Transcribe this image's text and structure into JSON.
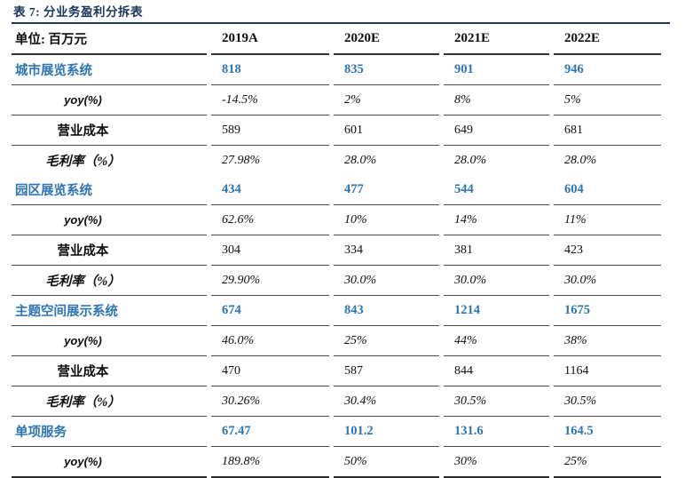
{
  "title": "表 7:  分业务盈利分拆表",
  "colors": {
    "accent_blue": "#2E75B6",
    "title_navy": "#17365D",
    "rule_dark": "#2f2f2f"
  },
  "table": {
    "unit_label": "单位: 百万元",
    "year_cols": [
      "2019A",
      "2020E",
      "2021E",
      "2022E"
    ],
    "rows": [
      {
        "type": "section",
        "label": "城市展览系统",
        "values": [
          "818",
          "835",
          "901",
          "946"
        ]
      },
      {
        "type": "yoy",
        "label": "yoy(%)",
        "values": [
          "-14.5%",
          "2%",
          "8%",
          "5%"
        ]
      },
      {
        "type": "cost",
        "label": "营业成本",
        "values": [
          "589",
          "601",
          "649",
          "681"
        ]
      },
      {
        "type": "margin",
        "label": "毛利率（%）",
        "values": [
          "27.98%",
          "28.0%",
          "28.0%",
          "28.0%"
        ]
      },
      {
        "type": "section",
        "label": "园区展览系统",
        "values": [
          "434",
          "477",
          "544",
          "604"
        ]
      },
      {
        "type": "yoy",
        "label": "yoy(%)",
        "values": [
          "62.6%",
          "10%",
          "14%",
          "11%"
        ]
      },
      {
        "type": "cost",
        "label": "营业成本",
        "values": [
          "304",
          "334",
          "381",
          "423"
        ]
      },
      {
        "type": "margin",
        "label": "毛利率（%）",
        "values": [
          "29.90%",
          "30.0%",
          "30.0%",
          "30.0%"
        ]
      },
      {
        "type": "section",
        "label": "主题空间展示系统",
        "values": [
          "674",
          "843",
          "1214",
          "1675"
        ]
      },
      {
        "type": "yoy",
        "label": "yoy(%)",
        "values": [
          "46.0%",
          "25%",
          "44%",
          "38%"
        ]
      },
      {
        "type": "cost",
        "label": "营业成本",
        "values": [
          "470",
          "587",
          "844",
          "1164"
        ]
      },
      {
        "type": "margin",
        "label": "毛利率（%）",
        "values": [
          "30.26%",
          "30.4%",
          "30.5%",
          "30.5%"
        ]
      },
      {
        "type": "section",
        "label": "单项服务",
        "values": [
          "67.47",
          "101.2",
          "131.6",
          "164.5"
        ]
      },
      {
        "type": "yoy",
        "label": "yoy(%)",
        "values": [
          "189.8%",
          "50%",
          "30%",
          "25%"
        ]
      }
    ]
  }
}
